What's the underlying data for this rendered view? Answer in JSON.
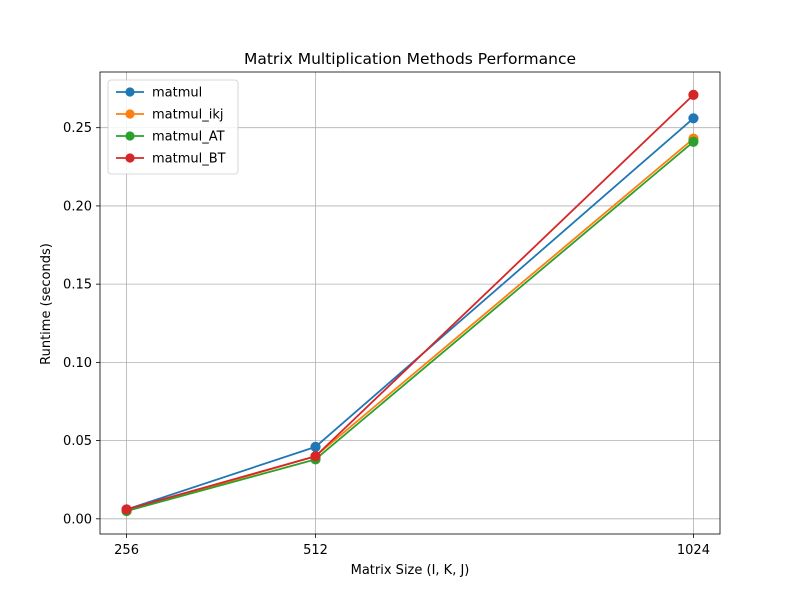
{
  "chart_data": {
    "type": "line",
    "title": "Matrix Multiplication Methods Performance",
    "xlabel": "Matrix Size (I, K, J)",
    "ylabel": "Runtime (seconds)",
    "x": [
      256,
      512,
      1024
    ],
    "x_tick_labels": [
      "256",
      "512",
      "1024"
    ],
    "xlim": [
      220,
      1060
    ],
    "ylim": [
      -0.0097,
      0.2856
    ],
    "y_ticks": [
      0.0,
      0.05,
      0.1,
      0.15,
      0.2,
      0.25
    ],
    "y_tick_labels": [
      "0.00",
      "0.05",
      "0.10",
      "0.15",
      "0.20",
      "0.25"
    ],
    "grid": true,
    "legend_position": "top-left",
    "marker": "circle",
    "series": [
      {
        "name": "matmul",
        "values": [
          0.006,
          0.046,
          0.256
        ],
        "color": "#1f77b4"
      },
      {
        "name": "matmul_ikj",
        "values": [
          0.005,
          0.04,
          0.243
        ],
        "color": "#ff7f0e"
      },
      {
        "name": "matmul_AT",
        "values": [
          0.005,
          0.038,
          0.241
        ],
        "color": "#2ca02c"
      },
      {
        "name": "matmul_BT",
        "values": [
          0.006,
          0.04,
          0.271
        ],
        "color": "#d62728"
      }
    ]
  }
}
